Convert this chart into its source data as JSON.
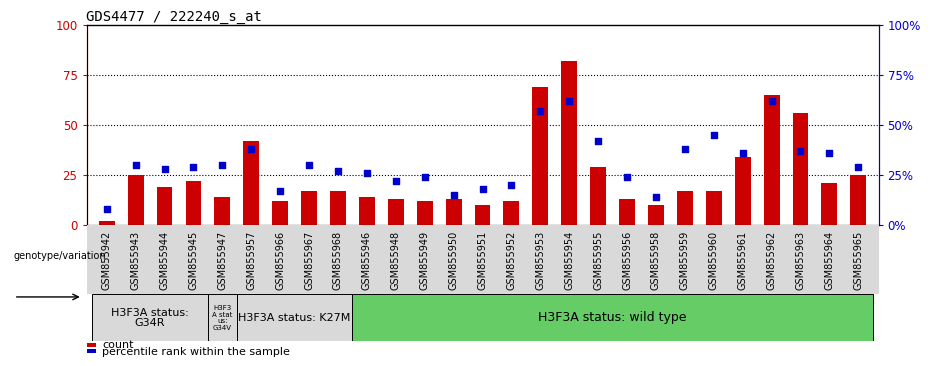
{
  "title": "GDS4477 / 222240_s_at",
  "samples": [
    "GSM855942",
    "GSM855943",
    "GSM855944",
    "GSM855945",
    "GSM855947",
    "GSM855957",
    "GSM855966",
    "GSM855967",
    "GSM855968",
    "GSM855946",
    "GSM855948",
    "GSM855949",
    "GSM855950",
    "GSM855951",
    "GSM855952",
    "GSM855953",
    "GSM855954",
    "GSM855955",
    "GSM855956",
    "GSM855958",
    "GSM855959",
    "GSM855960",
    "GSM855961",
    "GSM855962",
    "GSM855963",
    "GSM855964",
    "GSM855965"
  ],
  "counts": [
    2,
    25,
    19,
    22,
    14,
    42,
    12,
    17,
    17,
    14,
    13,
    12,
    13,
    10,
    12,
    69,
    82,
    29,
    13,
    10,
    17,
    17,
    34,
    65,
    56,
    21,
    25
  ],
  "percentiles": [
    8,
    30,
    28,
    29,
    30,
    38,
    17,
    30,
    27,
    26,
    22,
    24,
    15,
    18,
    20,
    57,
    62,
    42,
    24,
    14,
    38,
    45,
    36,
    62,
    37,
    36,
    29
  ],
  "bar_color": "#cc0000",
  "dot_color": "#0000cc",
  "ylim": [
    0,
    100
  ],
  "yticks": [
    0,
    25,
    50,
    75,
    100
  ],
  "ytick_labels_left": [
    "0",
    "25",
    "50",
    "75",
    "100"
  ],
  "ytick_labels_right": [
    "0%",
    "25%",
    "50%",
    "75%",
    "100%"
  ],
  "legend_count_label": "count",
  "legend_pct_label": "percentile rank within the sample",
  "genotype_label": "genotype/variation",
  "dotted_lines": [
    25,
    50,
    75
  ],
  "title_fontsize": 10,
  "tick_fontsize": 7,
  "group_defs": [
    {
      "start": 0,
      "end": 3,
      "color": "#d9d9d9",
      "label": "H3F3A status:\nG34R",
      "fontsize": 8
    },
    {
      "start": 4,
      "end": 4,
      "color": "#d9d9d9",
      "label": "H3F3\nA stat\nus:\nG34V",
      "fontsize": 5
    },
    {
      "start": 5,
      "end": 8,
      "color": "#d9d9d9",
      "label": "H3F3A status: K27M",
      "fontsize": 8
    },
    {
      "start": 9,
      "end": 26,
      "color": "#66cc66",
      "label": "H3F3A status: wild type",
      "fontsize": 9
    }
  ]
}
